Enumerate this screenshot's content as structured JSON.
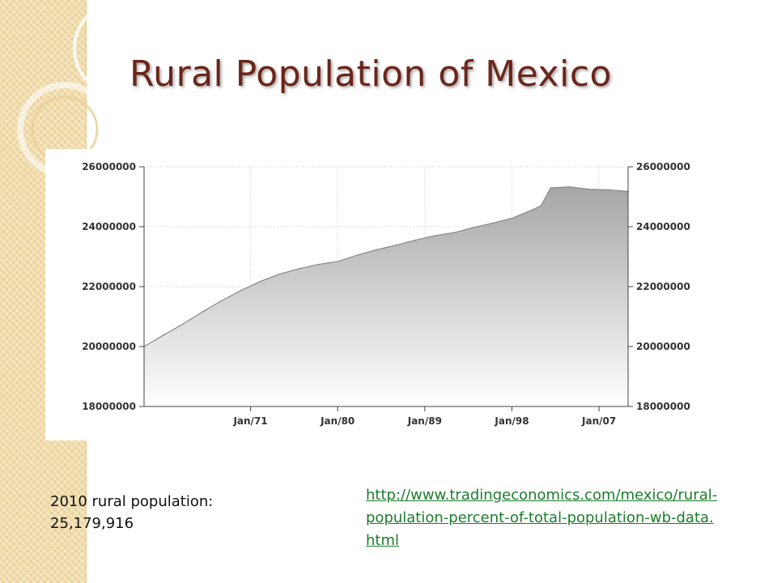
{
  "slide": {
    "title": "Rural Population of Mexico",
    "note_line1": "2010 rural population:",
    "note_line2": "25,179,916",
    "source_url": "http://www.tradingeconomics.com/mexico/rural-population-percent-of-total-population-wb-data.html"
  },
  "colors": {
    "title": "#6a2619",
    "link": "#1a7d29",
    "side_band": "#f1dcab",
    "area_top": "#a6a6a6",
    "area_bottom": "#ffffff",
    "area_line": "#888888"
  },
  "chart_data": {
    "type": "area",
    "title": "",
    "xlabel": "",
    "ylabel": "",
    "xlim": [
      1960,
      2010
    ],
    "ylim": [
      18000000,
      26000000
    ],
    "x_ticks": [
      1971,
      1980,
      1989,
      1998,
      2007
    ],
    "x_tick_labels": [
      "Jan/71",
      "Jan/80",
      "Jan/89",
      "Jan/98",
      "Jan/07"
    ],
    "y_ticks": [
      18000000,
      20000000,
      22000000,
      24000000,
      26000000
    ],
    "y_tick_labels": [
      "18000000",
      "20000000",
      "22000000",
      "24000000",
      "26000000"
    ],
    "grid": true,
    "right_axis": true,
    "series": [
      {
        "x": [
          1960,
          1962,
          1964,
          1966,
          1968,
          1970,
          1972,
          1974,
          1976,
          1978,
          1980,
          1982,
          1984,
          1986,
          1988,
          1990,
          1992,
          1994,
          1996,
          1998,
          2000,
          2001,
          2002,
          2004,
          2006,
          2008,
          2010
        ],
        "y": [
          20000000,
          20380000,
          20750000,
          21150000,
          21530000,
          21870000,
          22170000,
          22420000,
          22600000,
          22740000,
          22840000,
          23050000,
          23230000,
          23380000,
          23550000,
          23700000,
          23800000,
          23970000,
          24120000,
          24280000,
          24550000,
          24700000,
          25300000,
          25330000,
          25250000,
          25230000,
          25180000
        ]
      }
    ]
  }
}
